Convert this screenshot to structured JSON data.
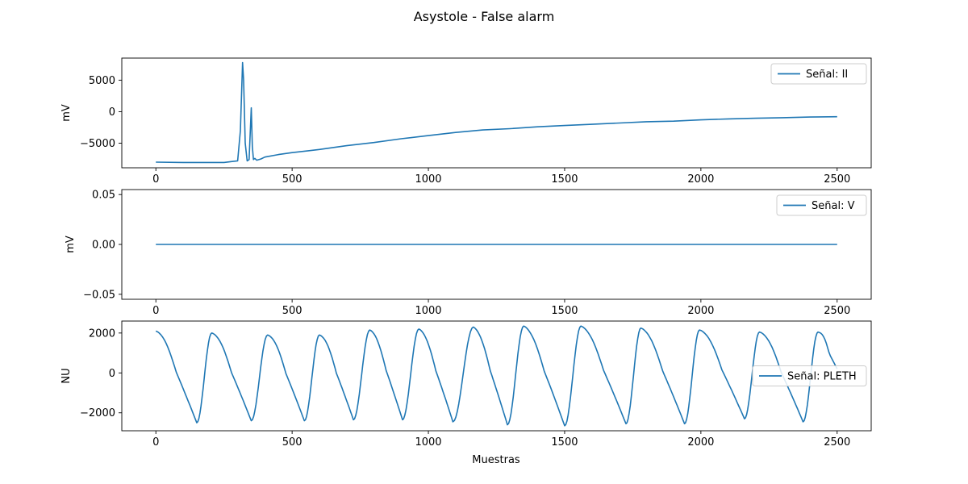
{
  "figure": {
    "title": "Asystole - False alarm",
    "xlabel": "Muestras"
  },
  "chart_data": [
    {
      "type": "line",
      "ylabel": "mV",
      "xlim": [
        -125,
        2625
      ],
      "ylim": [
        -8900,
        8500
      ],
      "xticks": [
        0,
        500,
        1000,
        1500,
        2000,
        2500
      ],
      "yticks": [
        -5000,
        0,
        5000
      ],
      "ytick_labels": [
        "−5000",
        "0",
        "5000"
      ],
      "legend_placement": "upper-right",
      "color": "#1f77b4",
      "series": [
        {
          "name": "Señal: II",
          "x": [
            0,
            100,
            200,
            250,
            280,
            300,
            310,
            318,
            322,
            328,
            335,
            342,
            350,
            354,
            358,
            363,
            370,
            385,
            400,
            450,
            500,
            600,
            700,
            800,
            900,
            1000,
            1100,
            1200,
            1300,
            1400,
            1500,
            1600,
            1700,
            1800,
            1900,
            2000,
            2100,
            2200,
            2300,
            2400,
            2500
          ],
          "y": [
            -8000,
            -8050,
            -8050,
            -8050,
            -7900,
            -7800,
            -3000,
            7800,
            5000,
            -5000,
            -7800,
            -7600,
            600,
            -5500,
            -7600,
            -7400,
            -7700,
            -7500,
            -7200,
            -6800,
            -6500,
            -6000,
            -5400,
            -4900,
            -4300,
            -3800,
            -3300,
            -2900,
            -2700,
            -2400,
            -2200,
            -2000,
            -1800,
            -1600,
            -1500,
            -1300,
            -1150,
            -1050,
            -950,
            -850,
            -800
          ]
        }
      ]
    },
    {
      "type": "line",
      "ylabel": "mV",
      "xlim": [
        -125,
        2625
      ],
      "ylim": [
        -0.055,
        0.055
      ],
      "xticks": [
        0,
        500,
        1000,
        1500,
        2000,
        2500
      ],
      "yticks": [
        -0.05,
        0.0,
        0.05
      ],
      "ytick_labels": [
        "−0.05",
        "0.00",
        "0.05"
      ],
      "legend_placement": "upper-right",
      "color": "#1f77b4",
      "series": [
        {
          "name": "Señal: V",
          "x": [
            0,
            2500
          ],
          "y": [
            0,
            0
          ]
        }
      ]
    },
    {
      "type": "line",
      "ylabel": "NU",
      "xlim": [
        -125,
        2625
      ],
      "ylim": [
        -2900,
        2600
      ],
      "xticks": [
        0,
        500,
        1000,
        1500,
        2000,
        2500
      ],
      "yticks": [
        -2000,
        0,
        2000
      ],
      "ytick_labels": [
        "−2000",
        "0",
        "2000"
      ],
      "legend_placement": "center-right",
      "color": "#1f77b4",
      "series": [
        {
          "name": "Señal: PLETH",
          "troughs": [
            [
              150,
              -2500
            ],
            [
              350,
              -2400
            ],
            [
              545,
              -2400
            ],
            [
              725,
              -2350
            ],
            [
              905,
              -2350
            ],
            [
              1090,
              -2450
            ],
            [
              1290,
              -2600
            ],
            [
              1500,
              -2650
            ],
            [
              1725,
              -2550
            ],
            [
              1940,
              -2550
            ],
            [
              2160,
              -2300
            ],
            [
              2375,
              -2450
            ]
          ],
          "peaks": [
            [
              0,
              2100
            ],
            [
              205,
              2000
            ],
            [
              410,
              1900
            ],
            [
              600,
              1900
            ],
            [
              785,
              2150
            ],
            [
              965,
              2200
            ],
            [
              1165,
              2300
            ],
            [
              1350,
              2350
            ],
            [
              1560,
              2350
            ],
            [
              1780,
              2250
            ],
            [
              1995,
              2150
            ],
            [
              2215,
              2050
            ],
            [
              2430,
              2050
            ]
          ],
          "end": [
            2500,
            200
          ]
        }
      ]
    }
  ]
}
